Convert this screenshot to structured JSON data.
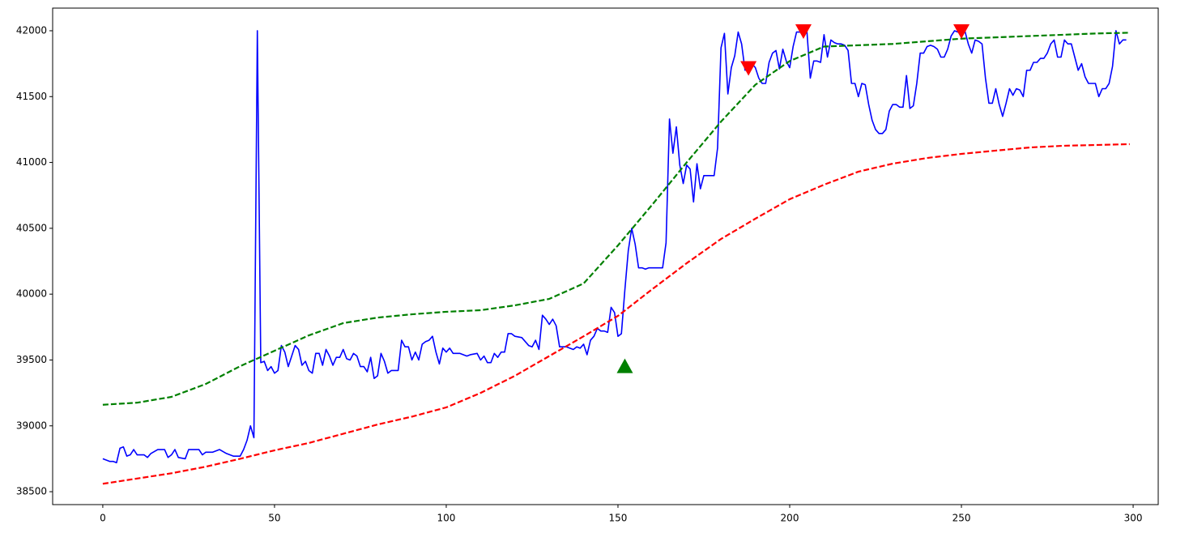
{
  "chart_data": {
    "type": "line",
    "xlim": [
      -14.6,
      307.3
    ],
    "ylim": [
      38402,
      42172
    ],
    "xticks": [
      0,
      50,
      100,
      150,
      200,
      250,
      300
    ],
    "yticks": [
      38500,
      39000,
      39500,
      40000,
      40500,
      41000,
      41500,
      42000
    ],
    "grid": false,
    "series": [
      {
        "color": "#0000ff",
        "dash": false,
        "x": [
          0,
          1,
          2,
          3,
          4,
          5,
          6,
          7,
          8,
          9,
          10,
          12,
          13,
          14,
          16,
          18,
          19,
          20,
          21,
          22,
          24,
          25,
          28,
          29,
          30,
          32,
          34,
          36,
          38,
          40,
          41,
          42,
          43,
          44,
          45,
          46,
          47,
          48,
          49,
          50,
          51,
          52,
          53,
          54,
          55,
          56,
          57,
          58,
          59,
          60,
          61,
          62,
          63,
          64,
          65,
          66,
          67,
          68,
          69,
          70,
          71,
          72,
          73,
          74,
          75,
          76,
          77,
          78,
          79,
          80,
          81,
          82,
          83,
          84,
          85,
          86,
          87,
          88,
          89,
          90,
          91,
          92,
          93,
          94,
          95,
          96,
          97,
          98,
          99,
          100,
          101,
          102,
          104,
          106,
          107,
          109,
          110,
          111,
          112,
          113,
          114,
          115,
          116,
          117,
          118,
          119,
          120,
          122,
          124,
          125,
          126,
          127,
          128,
          129,
          130,
          131,
          132,
          133,
          135,
          136,
          137,
          138,
          139,
          140,
          141,
          142,
          143,
          144,
          145,
          146,
          147,
          148,
          149,
          150,
          151,
          152,
          153,
          154,
          155,
          156,
          157,
          158,
          159,
          163,
          164,
          165,
          166,
          167,
          168,
          169,
          170,
          171,
          172,
          173,
          174,
          175,
          178,
          179,
          180,
          181,
          182,
          183,
          184,
          185,
          186,
          187,
          188,
          189,
          190,
          191,
          192,
          193,
          194,
          195,
          196,
          197,
          198,
          199,
          200,
          201,
          202,
          203,
          204,
          205,
          206,
          207,
          208,
          209,
          210,
          211,
          212,
          213,
          214,
          215,
          216,
          217,
          218,
          219,
          220,
          221,
          222,
          223,
          224,
          225,
          226,
          227,
          228,
          229,
          230,
          231,
          232,
          233,
          234,
          235,
          236,
          237,
          238,
          239,
          240,
          241,
          242,
          243,
          244,
          245,
          246,
          247,
          248,
          249,
          250,
          251,
          252,
          253,
          254,
          255,
          256,
          257,
          258,
          259,
          260,
          261,
          262,
          263,
          264,
          265,
          266,
          267,
          268,
          269,
          270,
          271,
          272,
          273,
          274,
          275,
          276,
          277,
          278,
          279,
          280,
          281,
          282,
          283,
          284,
          285,
          286,
          287,
          288,
          289,
          290,
          291,
          292,
          293,
          294,
          295,
          296,
          297,
          298
        ],
        "values": [
          38750,
          38740,
          38730,
          38730,
          38720,
          38830,
          38840,
          38770,
          38780,
          38820,
          38780,
          38780,
          38760,
          38790,
          38820,
          38820,
          38760,
          38780,
          38820,
          38760,
          38750,
          38820,
          38820,
          38780,
          38800,
          38800,
          38820,
          38790,
          38770,
          38770,
          38820,
          38890,
          39000,
          38910,
          42000,
          39480,
          39490,
          39420,
          39450,
          39400,
          39420,
          39610,
          39560,
          39450,
          39530,
          39610,
          39580,
          39460,
          39490,
          39420,
          39400,
          39550,
          39550,
          39460,
          39580,
          39530,
          39460,
          39520,
          39520,
          39580,
          39510,
          39500,
          39550,
          39530,
          39450,
          39450,
          39410,
          39520,
          39360,
          39380,
          39550,
          39490,
          39400,
          39420,
          39420,
          39420,
          39650,
          39600,
          39600,
          39500,
          39560,
          39500,
          39620,
          39640,
          39650,
          39680,
          39560,
          39470,
          39590,
          39560,
          39590,
          39550,
          39550,
          39530,
          39540,
          39550,
          39500,
          39530,
          39480,
          39480,
          39550,
          39520,
          39560,
          39560,
          39700,
          39700,
          39680,
          39670,
          39610,
          39600,
          39650,
          39580,
          39840,
          39810,
          39770,
          39810,
          39760,
          39600,
          39600,
          39590,
          39580,
          39600,
          39590,
          39620,
          39540,
          39650,
          39680,
          39740,
          39720,
          39720,
          39710,
          39900,
          39860,
          39680,
          39700,
          40030,
          40330,
          40500,
          40380,
          40200,
          40200,
          40190,
          40200,
          40200,
          40390,
          41330,
          41070,
          41270,
          40980,
          40840,
          40980,
          40950,
          40700,
          40990,
          40800,
          40900,
          40900,
          41110,
          41870,
          41980,
          41520,
          41720,
          41810,
          41990,
          41900,
          41700,
          41760,
          41750,
          41720,
          41640,
          41600,
          41600,
          41760,
          41830,
          41850,
          41710,
          41860,
          41770,
          41720,
          41880,
          41990,
          41990,
          41970,
          42000,
          41640,
          41770,
          41770,
          41760,
          41970,
          41800,
          41930,
          41910,
          41900,
          41900,
          41890,
          41850,
          41600,
          41600,
          41500,
          41600,
          41590,
          41440,
          41320,
          41250,
          41220,
          41220,
          41250,
          41390,
          41440,
          41440,
          41420,
          41420,
          41660,
          41410,
          41430,
          41600,
          41830,
          41830,
          41880,
          41890,
          41880,
          41860,
          41800,
          41800,
          41860,
          41960,
          42000,
          41990,
          42000,
          42000,
          41900,
          41830,
          41930,
          41920,
          41900,
          41640,
          41450,
          41450,
          41560,
          41440,
          41350,
          41450,
          41560,
          41510,
          41560,
          41550,
          41500,
          41700,
          41700,
          41760,
          41760,
          41790,
          41790,
          41830,
          41900,
          41930,
          41800,
          41800,
          41930,
          41900,
          41900,
          41800,
          41700,
          41750,
          41650,
          41600,
          41600,
          41600,
          41500,
          41560,
          41560,
          41600,
          41730,
          42000,
          41900,
          41930,
          41930
        ]
      },
      {
        "color": "#008000",
        "dash": true,
        "x": [
          0,
          10,
          20,
          30,
          40,
          50,
          60,
          70,
          80,
          90,
          100,
          110,
          120,
          130,
          140,
          150,
          160,
          170,
          180,
          190,
          200,
          210,
          220,
          230,
          240,
          250,
          260,
          270,
          280,
          290,
          299
        ],
        "values": [
          39160,
          39176,
          39220,
          39318,
          39453,
          39570,
          39687,
          39780,
          39822,
          39847,
          39866,
          39878,
          39915,
          39964,
          40081,
          40370,
          40680,
          41000,
          41310,
          41590,
          41770,
          41880,
          41890,
          41900,
          41920,
          41940,
          41950,
          41960,
          41970,
          41980,
          41985
        ]
      },
      {
        "color": "#ff0000",
        "dash": true,
        "x": [
          0,
          10,
          20,
          30,
          40,
          50,
          60,
          70,
          80,
          90,
          100,
          110,
          120,
          130,
          140,
          150,
          160,
          170,
          180,
          190,
          200,
          210,
          220,
          230,
          240,
          250,
          260,
          270,
          280,
          290,
          299
        ],
        "values": [
          38560,
          38600,
          38640,
          38690,
          38750,
          38814,
          38870,
          38940,
          39010,
          39070,
          39140,
          39250,
          39380,
          39530,
          39680,
          39835,
          40038,
          40235,
          40419,
          40573,
          40721,
          40831,
          40930,
          40991,
          41034,
          41065,
          41090,
          41114,
          41127,
          41133,
          41139
        ]
      }
    ],
    "markers": [
      {
        "x": 152,
        "y": 39450,
        "color": "#008000",
        "marker": "triangle-up"
      },
      {
        "x": 188,
        "y": 41720,
        "color": "#ff0000",
        "marker": "triangle-down"
      },
      {
        "x": 204,
        "y": 42000,
        "color": "#ff0000",
        "marker": "triangle-down"
      },
      {
        "x": 250,
        "y": 42000,
        "color": "#ff0000",
        "marker": "triangle-down"
      }
    ]
  }
}
